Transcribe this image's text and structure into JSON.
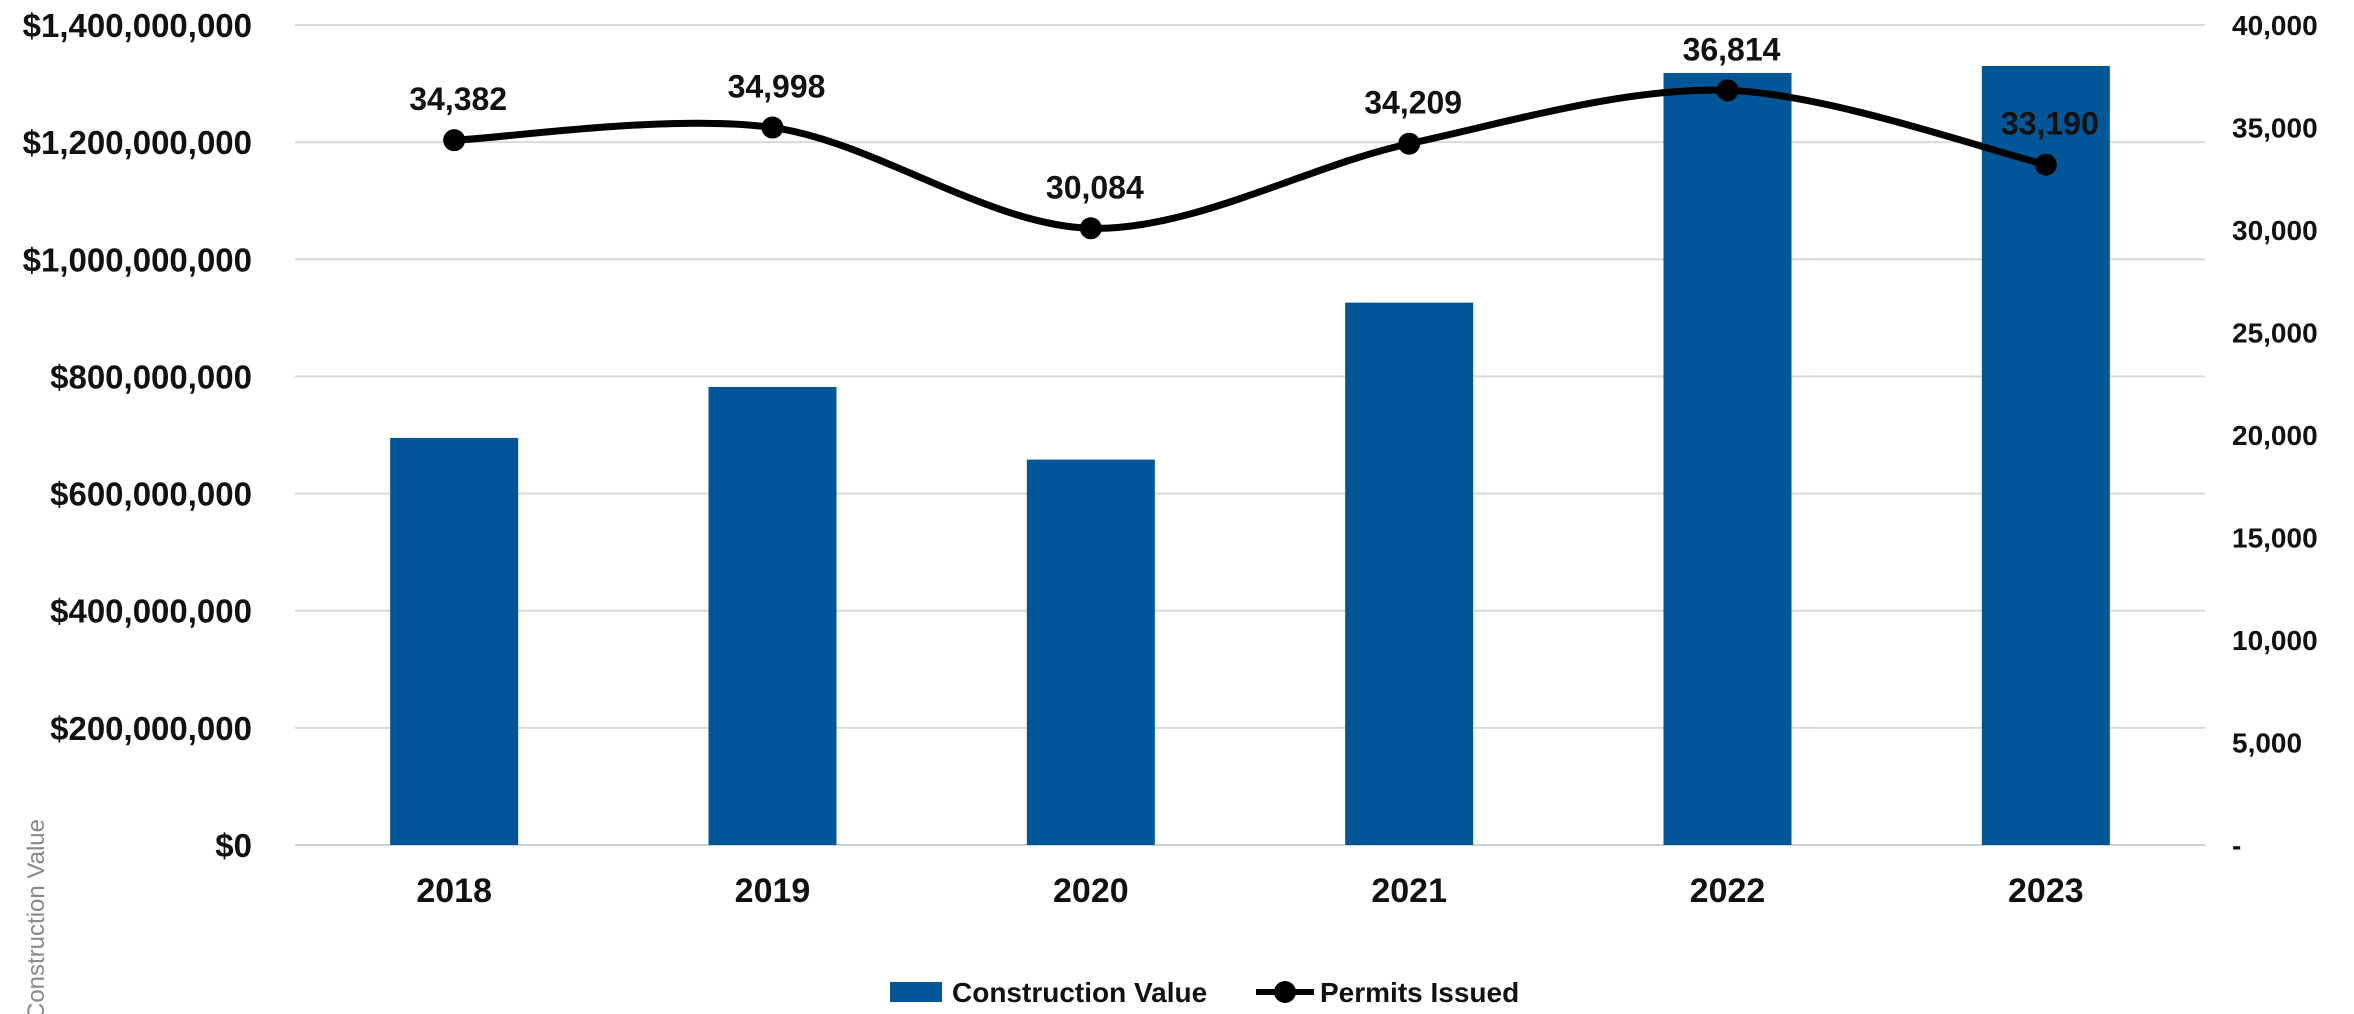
{
  "chart_data": {
    "type": "bar",
    "title": "",
    "categories": [
      "2018",
      "2019",
      "2020",
      "2021",
      "2022",
      "2023"
    ],
    "series": [
      {
        "name": "Construction Value",
        "type": "bar",
        "axis": "left",
        "color": "#005696",
        "values": [
          695000000,
          782000000,
          658000000,
          926000000,
          1318000000,
          1330000000
        ]
      },
      {
        "name": "Permits Issued",
        "type": "line",
        "axis": "right",
        "color": "#000000",
        "smooth": true,
        "values": [
          34382,
          34998,
          30084,
          34209,
          36814,
          33190
        ],
        "labels": [
          "34,382",
          "34,998",
          "30,084",
          "34,209",
          "36,814",
          "33,190"
        ]
      }
    ],
    "y_left": {
      "label": "Construction Value",
      "ylim": [
        0,
        1400000000
      ],
      "ticks": [
        0,
        200000000,
        400000000,
        600000000,
        800000000,
        1000000000,
        1200000000,
        1400000000
      ],
      "tick_labels": [
        "$0",
        "$200,000,000",
        "$400,000,000",
        "$600,000,000",
        "$800,000,000",
        "$1,000,000,000",
        "$1,200,000,000",
        "$1,400,000,000"
      ]
    },
    "y_right": {
      "label": "",
      "ylim": [
        0,
        40000
      ],
      "ticks": [
        0,
        5000,
        10000,
        15000,
        20000,
        25000,
        30000,
        35000,
        40000
      ],
      "tick_labels": [
        "-",
        "5,000",
        "10,000",
        "15,000",
        "20,000",
        "25,000",
        "30,000",
        "35,000",
        "40,000"
      ]
    },
    "grid": true,
    "legend": {
      "position": "bottom",
      "entries": [
        "Construction Value",
        "Permits Issued"
      ]
    }
  }
}
